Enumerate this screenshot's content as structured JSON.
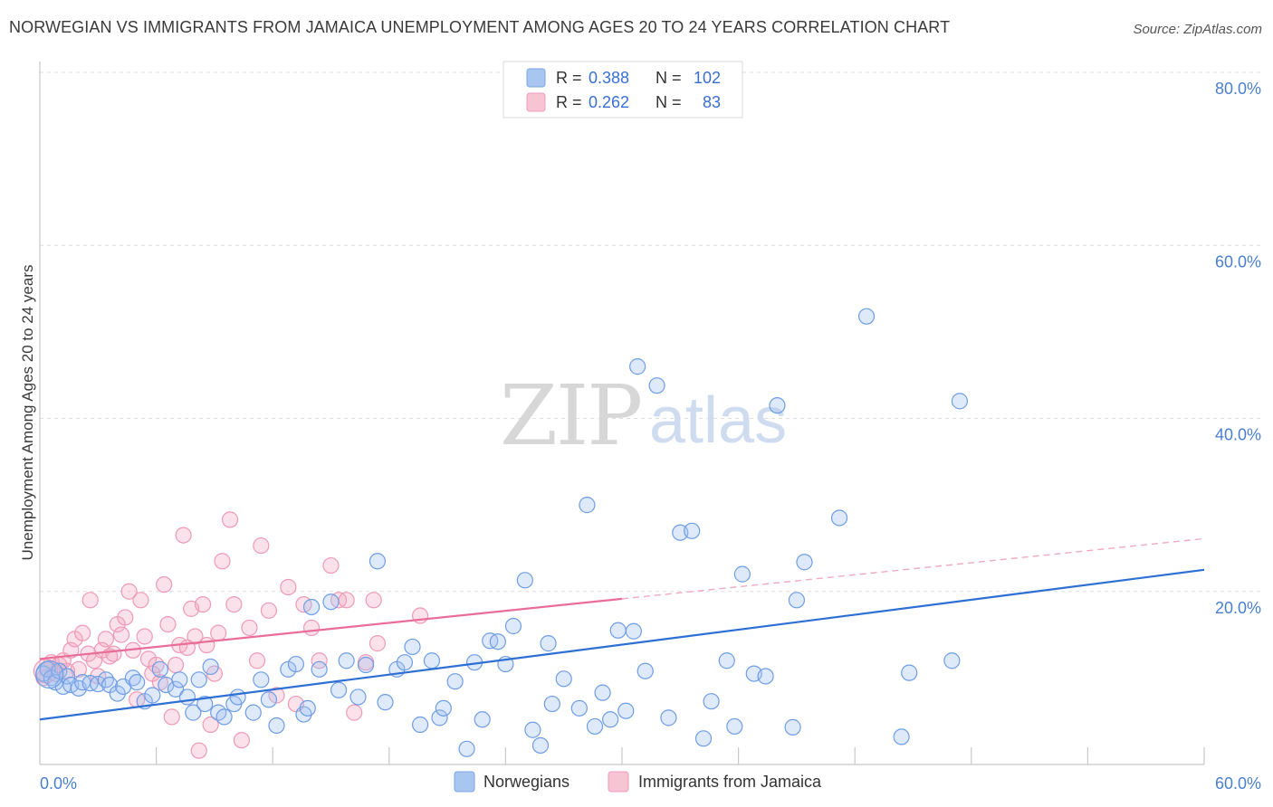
{
  "header": {
    "title": "NORWEGIAN VS IMMIGRANTS FROM JAMAICA UNEMPLOYMENT AMONG AGES 20 TO 24 YEARS CORRELATION CHART",
    "source": "Source: ZipAtlas.com"
  },
  "watermark": {
    "part1": "ZIP",
    "part2": "atlas"
  },
  "legend_top": {
    "rows": [
      {
        "r_label": "R = ",
        "r_value": "0.388",
        "n_label": "N = ",
        "n_value": "102",
        "color": "#a9c6f0"
      },
      {
        "r_label": "R = ",
        "r_value": "0.262",
        "n_label": "N = ",
        "n_value": "83",
        "color": "#f4b5c8"
      }
    ]
  },
  "legend_bottom": {
    "items": [
      {
        "label": "Norwegians",
        "color": "#a9c6f0"
      },
      {
        "label": "Immigrants from Jamaica",
        "color": "#f4b5c8"
      }
    ]
  },
  "chart_data": {
    "type": "scatter",
    "title": "NORWEGIAN VS IMMIGRANTS FROM JAMAICA UNEMPLOYMENT AMONG AGES 20 TO 24 YEARS CORRELATION CHART",
    "xlabel": "",
    "ylabel": "Unemployment Among Ages 20 to 24 years",
    "xlim": [
      0,
      60
    ],
    "ylim": [
      0,
      80
    ],
    "x_tick_labels": [
      "0.0%",
      "60.0%"
    ],
    "y_tick_labels": [
      "20.0%",
      "40.0%",
      "60.0%",
      "80.0%"
    ],
    "y_tick_values": [
      20,
      40,
      60,
      80
    ],
    "grid": true,
    "legend_position": "top-center",
    "colors": {
      "Norwegians": "#5b8ee0",
      "Immigrants from Jamaica": "#e883a5",
      "blue_line": "#2e6fd4",
      "pink_line": "#e86d98"
    },
    "series": [
      {
        "name": "Norwegians",
        "trend": {
          "x0": 0,
          "y0": 5.2,
          "x1": 60,
          "y1": 22.5
        },
        "points": [
          [
            0.2,
            10.5
          ],
          [
            0.4,
            11.0
          ],
          [
            0.6,
            10.0
          ],
          [
            0.8,
            9.5
          ],
          [
            1.0,
            10.8
          ],
          [
            1.2,
            9.0
          ],
          [
            1.4,
            10.2
          ],
          [
            1.6,
            9.2
          ],
          [
            2.0,
            8.8
          ],
          [
            2.2,
            9.5
          ],
          [
            2.6,
            9.4
          ],
          [
            3.0,
            9.3
          ],
          [
            3.4,
            9.8
          ],
          [
            3.6,
            9.2
          ],
          [
            4.0,
            8.2
          ],
          [
            4.3,
            9.0
          ],
          [
            4.8,
            10.0
          ],
          [
            5.0,
            9.5
          ],
          [
            5.4,
            7.3
          ],
          [
            5.8,
            8.0
          ],
          [
            6.2,
            11.0
          ],
          [
            6.5,
            9.2
          ],
          [
            7.0,
            8.7
          ],
          [
            7.2,
            9.8
          ],
          [
            7.6,
            7.8
          ],
          [
            7.9,
            6.0
          ],
          [
            8.2,
            9.8
          ],
          [
            8.5,
            7.0
          ],
          [
            8.8,
            11.3
          ],
          [
            9.2,
            6.0
          ],
          [
            9.5,
            5.5
          ],
          [
            10.0,
            7.0
          ],
          [
            10.2,
            7.8
          ],
          [
            11.0,
            6.0
          ],
          [
            11.4,
            9.8
          ],
          [
            11.8,
            7.5
          ],
          [
            12.2,
            4.5
          ],
          [
            12.8,
            11.0
          ],
          [
            13.2,
            11.6
          ],
          [
            13.6,
            5.8
          ],
          [
            13.8,
            6.5
          ],
          [
            14.0,
            18.2
          ],
          [
            14.4,
            11.0
          ],
          [
            15.0,
            18.8
          ],
          [
            15.4,
            8.6
          ],
          [
            15.8,
            12.0
          ],
          [
            16.4,
            7.8
          ],
          [
            16.8,
            11.5
          ],
          [
            17.4,
            23.5
          ],
          [
            17.8,
            7.2
          ],
          [
            18.4,
            11.0
          ],
          [
            18.8,
            11.8
          ],
          [
            19.2,
            13.6
          ],
          [
            19.6,
            4.6
          ],
          [
            20.2,
            12.0
          ],
          [
            20.6,
            5.4
          ],
          [
            20.8,
            6.5
          ],
          [
            21.4,
            9.6
          ],
          [
            22.0,
            1.8
          ],
          [
            22.4,
            11.8
          ],
          [
            22.8,
            5.2
          ],
          [
            23.2,
            14.3
          ],
          [
            23.6,
            14.2
          ],
          [
            24.0,
            11.6
          ],
          [
            24.4,
            16.0
          ],
          [
            25.0,
            21.3
          ],
          [
            25.4,
            4.0
          ],
          [
            25.8,
            2.2
          ],
          [
            26.2,
            14.0
          ],
          [
            26.4,
            7.0
          ],
          [
            27.0,
            9.9
          ],
          [
            27.8,
            6.5
          ],
          [
            28.2,
            30.0
          ],
          [
            28.6,
            4.4
          ],
          [
            29.0,
            8.3
          ],
          [
            29.4,
            5.2
          ],
          [
            29.8,
            15.5
          ],
          [
            30.2,
            6.2
          ],
          [
            30.6,
            15.4
          ],
          [
            30.8,
            46.0
          ],
          [
            31.2,
            10.8
          ],
          [
            31.8,
            43.8
          ],
          [
            32.4,
            5.4
          ],
          [
            33.0,
            26.8
          ],
          [
            33.6,
            27.0
          ],
          [
            33.8,
            77.2
          ],
          [
            34.2,
            3.0
          ],
          [
            34.6,
            7.3
          ],
          [
            35.4,
            12.0
          ],
          [
            35.8,
            4.4
          ],
          [
            36.2,
            22.0
          ],
          [
            36.8,
            10.5
          ],
          [
            37.4,
            10.2
          ],
          [
            38.0,
            41.5
          ],
          [
            38.8,
            4.3
          ],
          [
            39.0,
            19.0
          ],
          [
            39.4,
            23.4
          ],
          [
            41.2,
            28.5
          ],
          [
            42.6,
            51.8
          ],
          [
            44.4,
            3.2
          ],
          [
            44.8,
            10.6
          ],
          [
            47.0,
            12.0
          ],
          [
            47.4,
            42.0
          ]
        ]
      },
      {
        "name": "Immigrants from Jamaica",
        "trend": {
          "x0": 0,
          "y0": 12.2,
          "x1": 60,
          "y1": 26.1,
          "solid_until_x": 30
        },
        "points": [
          [
            0.2,
            10.0
          ],
          [
            0.4,
            11.0
          ],
          [
            0.6,
            11.8
          ],
          [
            0.8,
            10.5
          ],
          [
            1.0,
            11.5
          ],
          [
            1.2,
            12.0
          ],
          [
            1.4,
            10.8
          ],
          [
            1.6,
            13.2
          ],
          [
            1.8,
            14.5
          ],
          [
            2.0,
            11.0
          ],
          [
            2.2,
            15.2
          ],
          [
            2.5,
            12.8
          ],
          [
            2.6,
            19.0
          ],
          [
            2.8,
            12.0
          ],
          [
            3.0,
            10.2
          ],
          [
            3.2,
            13.2
          ],
          [
            3.4,
            14.5
          ],
          [
            3.6,
            12.5
          ],
          [
            3.8,
            12.8
          ],
          [
            4.0,
            16.2
          ],
          [
            4.2,
            15.0
          ],
          [
            4.4,
            17.0
          ],
          [
            4.6,
            20.0
          ],
          [
            4.8,
            13.2
          ],
          [
            5.0,
            7.5
          ],
          [
            5.2,
            19.0
          ],
          [
            5.4,
            14.8
          ],
          [
            5.6,
            12.2
          ],
          [
            5.8,
            10.5
          ],
          [
            6.0,
            11.5
          ],
          [
            6.2,
            9.5
          ],
          [
            6.4,
            20.8
          ],
          [
            6.6,
            16.2
          ],
          [
            6.8,
            5.5
          ],
          [
            7.0,
            11.5
          ],
          [
            7.2,
            13.8
          ],
          [
            7.4,
            26.5
          ],
          [
            7.6,
            13.5
          ],
          [
            7.8,
            18.0
          ],
          [
            8.0,
            14.8
          ],
          [
            8.2,
            1.6
          ],
          [
            8.4,
            18.5
          ],
          [
            8.6,
            13.8
          ],
          [
            8.8,
            4.6
          ],
          [
            9.0,
            10.5
          ],
          [
            9.2,
            15.2
          ],
          [
            9.4,
            23.5
          ],
          [
            9.8,
            28.3
          ],
          [
            10.0,
            18.5
          ],
          [
            10.4,
            2.8
          ],
          [
            10.8,
            15.8
          ],
          [
            11.2,
            12.0
          ],
          [
            11.4,
            25.3
          ],
          [
            11.8,
            17.8
          ],
          [
            12.2,
            8.0
          ],
          [
            12.8,
            20.5
          ],
          [
            13.2,
            7.0
          ],
          [
            13.6,
            18.5
          ],
          [
            14.0,
            15.8
          ],
          [
            14.4,
            12.0
          ],
          [
            15.0,
            23.0
          ],
          [
            15.4,
            19.0
          ],
          [
            15.8,
            19.0
          ],
          [
            16.2,
            6.0
          ],
          [
            16.8,
            11.8
          ],
          [
            17.2,
            19.0
          ],
          [
            17.4,
            14.0
          ],
          [
            19.6,
            17.2
          ]
        ]
      }
    ]
  }
}
